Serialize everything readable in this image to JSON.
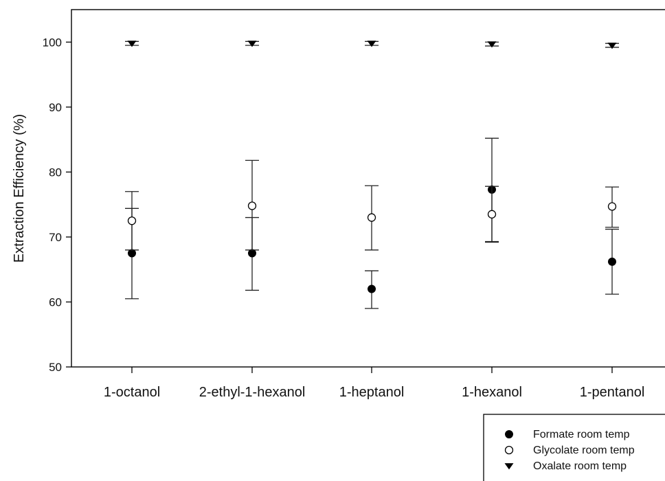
{
  "chart_data": {
    "type": "scatter",
    "title": "",
    "xlabel": "",
    "ylabel": "Extraction Efficiency (%)",
    "ylim": [
      50,
      105
    ],
    "yticks": [
      50,
      60,
      70,
      80,
      90,
      100
    ],
    "categories": [
      "1-octanol",
      "2-ethyl-1-hexanol",
      "1-heptanol",
      "1-hexanol",
      "1-pentanol"
    ],
    "grid": false,
    "legend_position": "bottom-right",
    "series": [
      {
        "name": "Formate room temp",
        "marker": "filled-circle",
        "color": "#000000",
        "values": [
          67.5,
          67.5,
          62.0,
          77.3,
          66.2
        ],
        "err_low": [
          60.5,
          61.8,
          59.0,
          69.3,
          61.2
        ],
        "err_high": [
          74.4,
          73.0,
          64.8,
          85.2,
          71.2
        ]
      },
      {
        "name": "Glycolate room temp",
        "marker": "open-circle",
        "color": "#000000",
        "values": [
          72.5,
          74.8,
          73.0,
          73.5,
          74.7
        ],
        "err_low": [
          68.0,
          68.0,
          68.0,
          69.2,
          71.5
        ],
        "err_high": [
          77.0,
          81.8,
          77.9,
          77.8,
          77.7
        ]
      },
      {
        "name": "Oxalate room temp",
        "marker": "filled-triangle-down",
        "color": "#000000",
        "values": [
          99.8,
          99.8,
          99.8,
          99.7,
          99.5
        ],
        "err_low": [
          99.5,
          99.5,
          99.5,
          99.4,
          99.2
        ],
        "err_high": [
          100.1,
          100.1,
          100.1,
          100.0,
          99.8
        ]
      }
    ]
  }
}
